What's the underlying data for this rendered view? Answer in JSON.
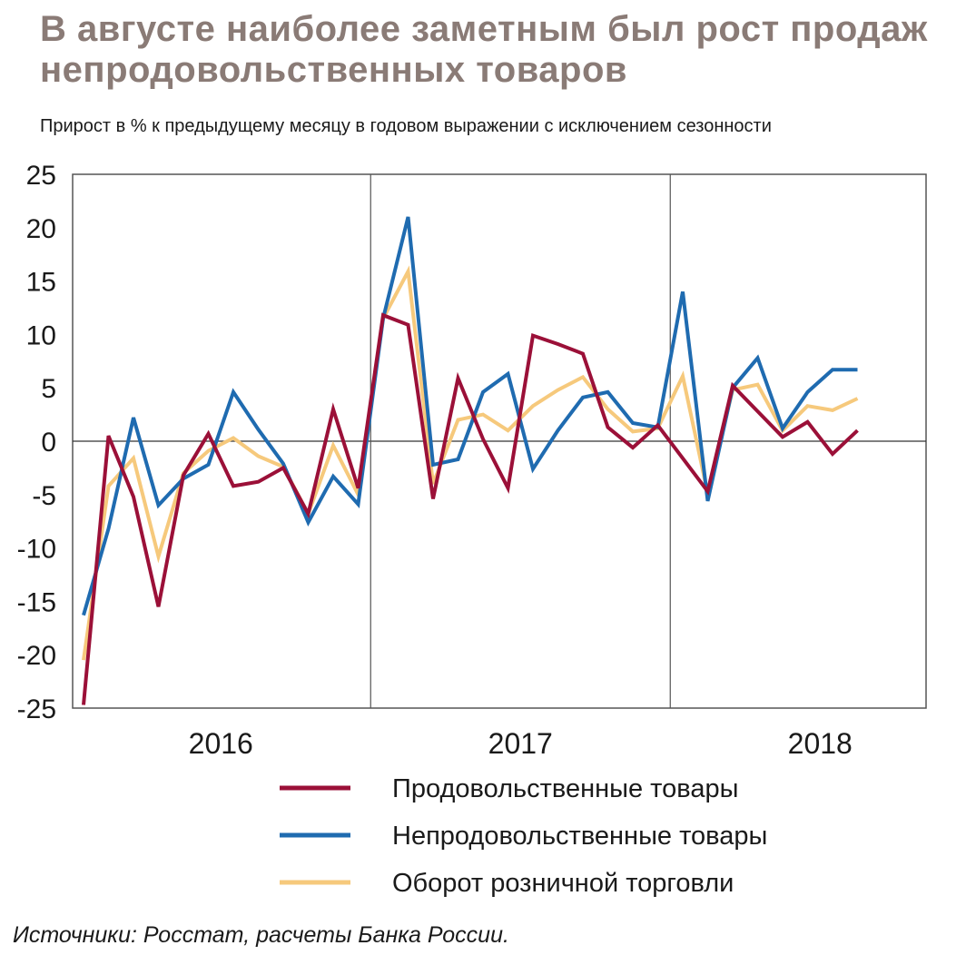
{
  "title": "В августе наиболее заметным был рост продаж непродовольственных товаров",
  "subtitle": "Прирост в % к предыдущему месяцу в годовом выражении с исключением сезонности",
  "source": "Источники: Росстат, расчеты Банка России.",
  "chart_data": {
    "type": "line",
    "xlabel": "",
    "ylabel": "",
    "ylim": [
      -25,
      25
    ],
    "yticks": [
      "25",
      "20",
      "15",
      "10",
      "5",
      "0",
      "-5",
      "-10",
      "-15",
      "-20",
      "-25"
    ],
    "x": [
      "2016-01",
      "2016-02",
      "2016-03",
      "2016-04",
      "2016-05",
      "2016-06",
      "2016-07",
      "2016-08",
      "2016-09",
      "2016-10",
      "2016-11",
      "2016-12",
      "2017-01",
      "2017-02",
      "2017-03",
      "2017-04",
      "2017-05",
      "2017-06",
      "2017-07",
      "2017-08",
      "2017-09",
      "2017-10",
      "2017-11",
      "2017-12",
      "2018-01",
      "2018-02",
      "2018-03",
      "2018-04",
      "2018-05",
      "2018-06",
      "2018-07",
      "2018-08"
    ],
    "year_labels": [
      "2016",
      "2017",
      "2018"
    ],
    "grid": true,
    "legend_position": "bottom",
    "series": [
      {
        "name": "Продовольственные товары",
        "color": "#9b1038",
        "values": [
          -24.7,
          0.5,
          -5.2,
          -15.5,
          -3.2,
          0.7,
          -4.2,
          -3.8,
          -2.5,
          -6.8,
          3.0,
          -4.4,
          11.8,
          10.9,
          -5.4,
          5.9,
          0.2,
          -4.4,
          9.9,
          9.1,
          8.2,
          1.3,
          -0.6,
          1.5,
          -1.6,
          -4.7,
          5.2,
          2.8,
          0.4,
          1.8,
          -1.2,
          1.0
        ]
      },
      {
        "name": "Непродовольственные товары",
        "color": "#1f6bb0",
        "values": [
          -16.3,
          -8.2,
          2.2,
          -6.0,
          -3.5,
          -2.2,
          4.6,
          1.1,
          -2.1,
          -7.6,
          -3.3,
          -5.9,
          11.5,
          21.0,
          -2.2,
          -1.7,
          4.6,
          6.3,
          -2.6,
          1.0,
          4.1,
          4.6,
          1.7,
          1.3,
          14.0,
          -5.6,
          5.0,
          7.8,
          1.2,
          4.6,
          6.7,
          6.7
        ]
      },
      {
        "name": "Оборот розничной торговли",
        "color": "#f6c97c",
        "values": [
          -20.5,
          -4.2,
          -1.6,
          -10.8,
          -3.0,
          -0.9,
          0.3,
          -1.4,
          -2.4,
          -6.8,
          -0.4,
          -5.0,
          11.5,
          15.9,
          -4.0,
          2.0,
          2.5,
          1.0,
          3.3,
          4.8,
          6.0,
          3.0,
          0.9,
          1.2,
          6.1,
          -4.9,
          4.8,
          5.3,
          1.0,
          3.3,
          2.9,
          4.0
        ]
      }
    ]
  }
}
